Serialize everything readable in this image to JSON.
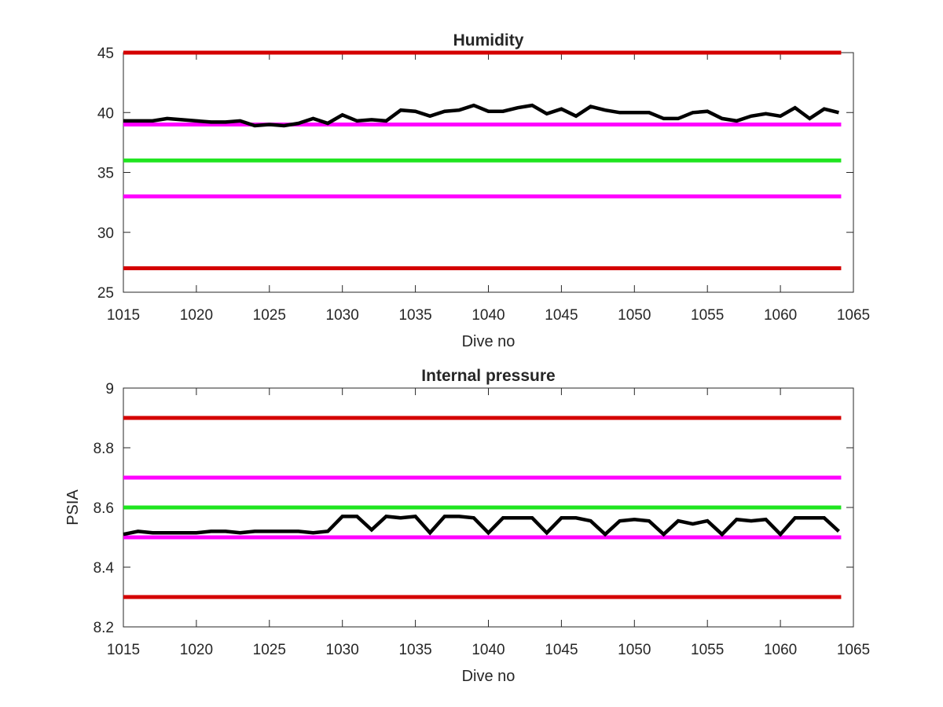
{
  "chart_data": [
    {
      "type": "line",
      "title": "Humidity",
      "xlabel": "Dive no",
      "ylabel": "",
      "xlim": [
        1015,
        1065
      ],
      "ylim": [
        25,
        45
      ],
      "xticks": [
        "1015",
        "1020",
        "1025",
        "1030",
        "1035",
        "1040",
        "1045",
        "1050",
        "1055",
        "1060",
        "1065"
      ],
      "yticks": [
        "25",
        "30",
        "35",
        "40",
        "45"
      ],
      "grid": false,
      "reference_lines": [
        {
          "y": 45,
          "color": "#d40000"
        },
        {
          "y": 39,
          "color": "#ff00ff"
        },
        {
          "y": 36,
          "color": "#1fe51f"
        },
        {
          "y": 33,
          "color": "#ff00ff"
        },
        {
          "y": 27,
          "color": "#d40000"
        }
      ],
      "series": [
        {
          "color": "#000000",
          "x": [
            1015,
            1016,
            1017,
            1018,
            1019,
            1020,
            1021,
            1022,
            1023,
            1024,
            1025,
            1026,
            1027,
            1028,
            1029,
            1030,
            1031,
            1032,
            1033,
            1034,
            1035,
            1036,
            1037,
            1038,
            1039,
            1040,
            1041,
            1042,
            1043,
            1044,
            1045,
            1046,
            1047,
            1048,
            1049,
            1050,
            1051,
            1052,
            1053,
            1054,
            1055,
            1056,
            1057,
            1058,
            1059,
            1060,
            1061,
            1062,
            1063,
            1064
          ],
          "values": [
            39.3,
            39.3,
            39.3,
            39.5,
            39.4,
            39.3,
            39.2,
            39.2,
            39.3,
            38.9,
            39.0,
            38.9,
            39.1,
            39.5,
            39.1,
            39.8,
            39.3,
            39.4,
            39.3,
            40.2,
            40.1,
            39.7,
            40.1,
            40.2,
            40.6,
            40.1,
            40.1,
            40.4,
            40.6,
            39.9,
            40.3,
            39.7,
            40.5,
            40.2,
            40.0,
            40.0,
            40.0,
            39.5,
            39.5,
            40.0,
            40.1,
            39.5,
            39.3,
            39.7,
            39.9,
            39.7,
            40.4,
            39.5,
            40.3,
            40.0
          ]
        }
      ]
    },
    {
      "type": "line",
      "title": "Internal pressure",
      "xlabel": "Dive no",
      "ylabel": "PSIA",
      "xlim": [
        1015,
        1065
      ],
      "ylim": [
        8.2,
        9.0
      ],
      "xticks": [
        "1015",
        "1020",
        "1025",
        "1030",
        "1035",
        "1040",
        "1045",
        "1050",
        "1055",
        "1060",
        "1065"
      ],
      "yticks": [
        "8.2",
        "8.4",
        "8.6",
        "8.8",
        "9"
      ],
      "grid": false,
      "reference_lines": [
        {
          "y": 8.9,
          "color": "#d40000"
        },
        {
          "y": 8.7,
          "color": "#ff00ff"
        },
        {
          "y": 8.6,
          "color": "#1fe51f"
        },
        {
          "y": 8.5,
          "color": "#ff00ff"
        },
        {
          "y": 8.3,
          "color": "#d40000"
        }
      ],
      "series": [
        {
          "color": "#000000",
          "x": [
            1015,
            1016,
            1017,
            1018,
            1019,
            1020,
            1021,
            1022,
            1023,
            1024,
            1025,
            1026,
            1027,
            1028,
            1029,
            1030,
            1031,
            1032,
            1033,
            1034,
            1035,
            1036,
            1037,
            1038,
            1039,
            1040,
            1041,
            1042,
            1043,
            1044,
            1045,
            1046,
            1047,
            1048,
            1049,
            1050,
            1051,
            1052,
            1053,
            1054,
            1055,
            1056,
            1057,
            1058,
            1059,
            1060,
            1061,
            1062,
            1063,
            1064
          ],
          "values": [
            8.51,
            8.52,
            8.515,
            8.515,
            8.515,
            8.515,
            8.52,
            8.52,
            8.515,
            8.52,
            8.52,
            8.52,
            8.52,
            8.515,
            8.52,
            8.57,
            8.57,
            8.525,
            8.57,
            8.565,
            8.57,
            8.515,
            8.57,
            8.57,
            8.565,
            8.515,
            8.565,
            8.565,
            8.565,
            8.515,
            8.565,
            8.565,
            8.555,
            8.51,
            8.555,
            8.56,
            8.555,
            8.51,
            8.555,
            8.545,
            8.555,
            8.51,
            8.56,
            8.555,
            8.56,
            8.51,
            8.565,
            8.565,
            8.565,
            8.52
          ]
        }
      ]
    }
  ]
}
